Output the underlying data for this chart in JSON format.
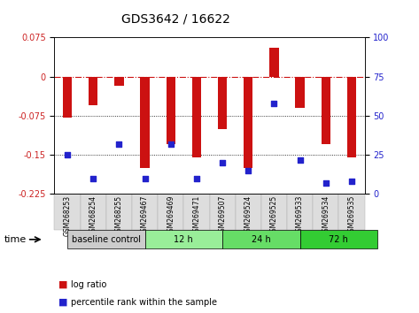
{
  "title": "GDS3642 / 16622",
  "samples": [
    "GSM268253",
    "GSM268254",
    "GSM268255",
    "GSM269467",
    "GSM269469",
    "GSM269471",
    "GSM269507",
    "GSM269524",
    "GSM269525",
    "GSM269533",
    "GSM269534",
    "GSM269535"
  ],
  "log_ratio": [
    -0.079,
    -0.055,
    -0.018,
    -0.175,
    -0.13,
    -0.155,
    -0.1,
    -0.175,
    0.055,
    -0.06,
    -0.13,
    -0.155
  ],
  "percentile": [
    25,
    10,
    32,
    10,
    32,
    10,
    20,
    15,
    58,
    22,
    7,
    8
  ],
  "groups": [
    {
      "label": "baseline control",
      "start": 0,
      "end": 3,
      "color": "#cccccc"
    },
    {
      "label": "12 h",
      "start": 3,
      "end": 6,
      "color": "#99ee99"
    },
    {
      "label": "24 h",
      "start": 6,
      "end": 9,
      "color": "#66dd66"
    },
    {
      "label": "72 h",
      "start": 9,
      "end": 12,
      "color": "#33cc33"
    }
  ],
  "ylim_left": [
    -0.225,
    0.075
  ],
  "ylim_right": [
    0,
    100
  ],
  "yticks_left": [
    0.075,
    0,
    -0.075,
    -0.15,
    -0.225
  ],
  "yticks_right": [
    100,
    75,
    50,
    25,
    0
  ],
  "hlines": [
    0,
    -0.075,
    -0.15
  ],
  "bar_color": "#cc1111",
  "dot_color": "#2222cc",
  "background_color": "#ffffff"
}
